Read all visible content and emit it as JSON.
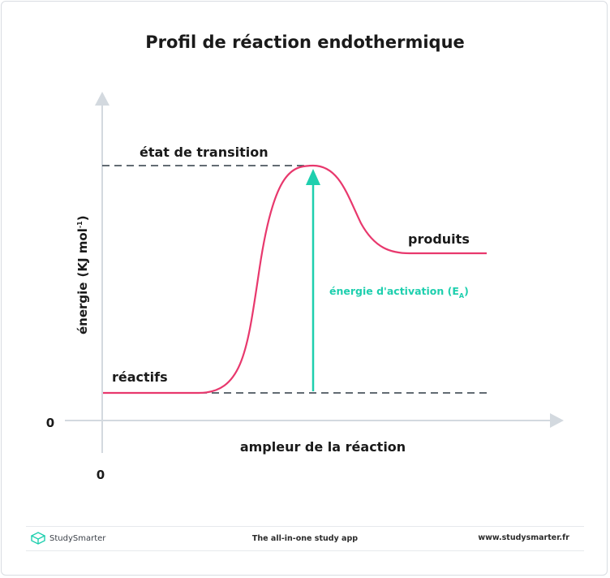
{
  "diagram": {
    "title": "Profil de réaction endothermique",
    "y_axis_label": "énergie",
    "y_axis_unit": "(KJ mol",
    "y_axis_unit_sup": "-1",
    "y_axis_unit_close": ")",
    "x_axis_label": "ampleur de la réaction",
    "x_origin_label": "0",
    "y_origin_label": "0",
    "transition_state_label": "état de transition",
    "products_label": "produits",
    "reactants_label": "réactifs",
    "activation_energy_label": "énergie d'activation (E",
    "activation_energy_sub": "A",
    "activation_energy_close": ")",
    "colors": {
      "curve": "#e8386d",
      "arrow": "#1ecfae",
      "axis": "#d3d9df",
      "dashes": "#2e3a45"
    }
  },
  "footer": {
    "brand": "StudySmarter",
    "brand_icon": "cube-icon",
    "tagline": "The all-in-one study app",
    "website": "www.studysmarter.fr"
  }
}
